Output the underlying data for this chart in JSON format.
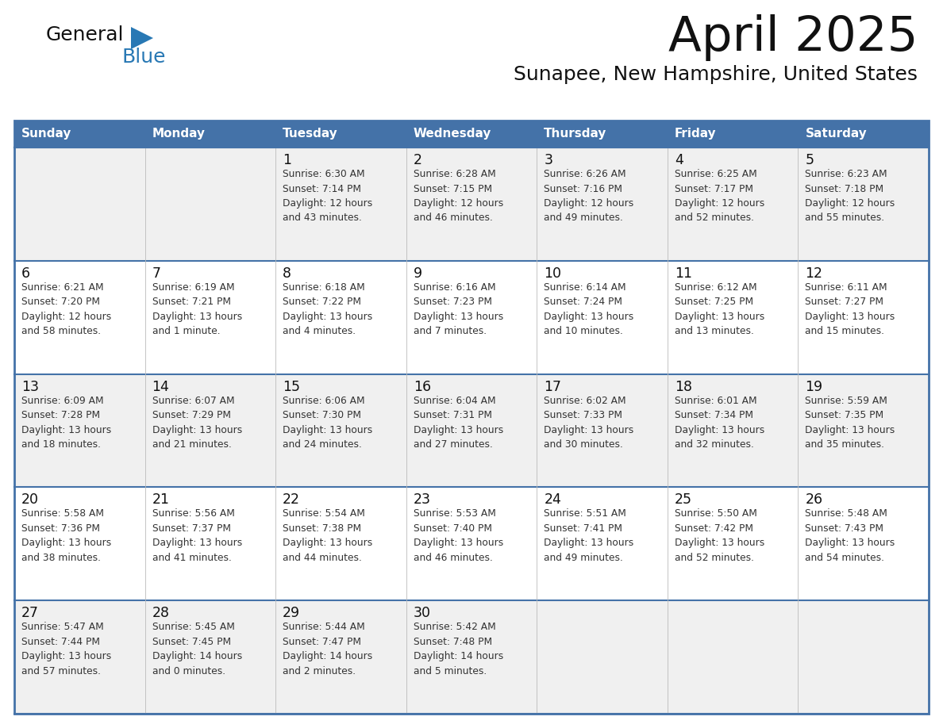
{
  "title": "April 2025",
  "subtitle": "Sunapee, New Hampshire, United States",
  "days_of_week": [
    "Sunday",
    "Monday",
    "Tuesday",
    "Wednesday",
    "Thursday",
    "Friday",
    "Saturday"
  ],
  "header_bg": "#4472a8",
  "header_text": "#ffffff",
  "row_bg_odd": "#f0f0f0",
  "row_bg_even": "#ffffff",
  "cell_text_color": "#333333",
  "day_num_color": "#111111",
  "border_color": "#4472a8",
  "inner_line_color": "#4472a8",
  "title_color": "#111111",
  "subtitle_color": "#111111",
  "logo_black": "#111111",
  "logo_blue": "#2878b4",
  "weeks": [
    [
      {
        "day": null,
        "info": null
      },
      {
        "day": null,
        "info": null
      },
      {
        "day": 1,
        "info": "Sunrise: 6:30 AM\nSunset: 7:14 PM\nDaylight: 12 hours\nand 43 minutes."
      },
      {
        "day": 2,
        "info": "Sunrise: 6:28 AM\nSunset: 7:15 PM\nDaylight: 12 hours\nand 46 minutes."
      },
      {
        "day": 3,
        "info": "Sunrise: 6:26 AM\nSunset: 7:16 PM\nDaylight: 12 hours\nand 49 minutes."
      },
      {
        "day": 4,
        "info": "Sunrise: 6:25 AM\nSunset: 7:17 PM\nDaylight: 12 hours\nand 52 minutes."
      },
      {
        "day": 5,
        "info": "Sunrise: 6:23 AM\nSunset: 7:18 PM\nDaylight: 12 hours\nand 55 minutes."
      }
    ],
    [
      {
        "day": 6,
        "info": "Sunrise: 6:21 AM\nSunset: 7:20 PM\nDaylight: 12 hours\nand 58 minutes."
      },
      {
        "day": 7,
        "info": "Sunrise: 6:19 AM\nSunset: 7:21 PM\nDaylight: 13 hours\nand 1 minute."
      },
      {
        "day": 8,
        "info": "Sunrise: 6:18 AM\nSunset: 7:22 PM\nDaylight: 13 hours\nand 4 minutes."
      },
      {
        "day": 9,
        "info": "Sunrise: 6:16 AM\nSunset: 7:23 PM\nDaylight: 13 hours\nand 7 minutes."
      },
      {
        "day": 10,
        "info": "Sunrise: 6:14 AM\nSunset: 7:24 PM\nDaylight: 13 hours\nand 10 minutes."
      },
      {
        "day": 11,
        "info": "Sunrise: 6:12 AM\nSunset: 7:25 PM\nDaylight: 13 hours\nand 13 minutes."
      },
      {
        "day": 12,
        "info": "Sunrise: 6:11 AM\nSunset: 7:27 PM\nDaylight: 13 hours\nand 15 minutes."
      }
    ],
    [
      {
        "day": 13,
        "info": "Sunrise: 6:09 AM\nSunset: 7:28 PM\nDaylight: 13 hours\nand 18 minutes."
      },
      {
        "day": 14,
        "info": "Sunrise: 6:07 AM\nSunset: 7:29 PM\nDaylight: 13 hours\nand 21 minutes."
      },
      {
        "day": 15,
        "info": "Sunrise: 6:06 AM\nSunset: 7:30 PM\nDaylight: 13 hours\nand 24 minutes."
      },
      {
        "day": 16,
        "info": "Sunrise: 6:04 AM\nSunset: 7:31 PM\nDaylight: 13 hours\nand 27 minutes."
      },
      {
        "day": 17,
        "info": "Sunrise: 6:02 AM\nSunset: 7:33 PM\nDaylight: 13 hours\nand 30 minutes."
      },
      {
        "day": 18,
        "info": "Sunrise: 6:01 AM\nSunset: 7:34 PM\nDaylight: 13 hours\nand 32 minutes."
      },
      {
        "day": 19,
        "info": "Sunrise: 5:59 AM\nSunset: 7:35 PM\nDaylight: 13 hours\nand 35 minutes."
      }
    ],
    [
      {
        "day": 20,
        "info": "Sunrise: 5:58 AM\nSunset: 7:36 PM\nDaylight: 13 hours\nand 38 minutes."
      },
      {
        "day": 21,
        "info": "Sunrise: 5:56 AM\nSunset: 7:37 PM\nDaylight: 13 hours\nand 41 minutes."
      },
      {
        "day": 22,
        "info": "Sunrise: 5:54 AM\nSunset: 7:38 PM\nDaylight: 13 hours\nand 44 minutes."
      },
      {
        "day": 23,
        "info": "Sunrise: 5:53 AM\nSunset: 7:40 PM\nDaylight: 13 hours\nand 46 minutes."
      },
      {
        "day": 24,
        "info": "Sunrise: 5:51 AM\nSunset: 7:41 PM\nDaylight: 13 hours\nand 49 minutes."
      },
      {
        "day": 25,
        "info": "Sunrise: 5:50 AM\nSunset: 7:42 PM\nDaylight: 13 hours\nand 52 minutes."
      },
      {
        "day": 26,
        "info": "Sunrise: 5:48 AM\nSunset: 7:43 PM\nDaylight: 13 hours\nand 54 minutes."
      }
    ],
    [
      {
        "day": 27,
        "info": "Sunrise: 5:47 AM\nSunset: 7:44 PM\nDaylight: 13 hours\nand 57 minutes."
      },
      {
        "day": 28,
        "info": "Sunrise: 5:45 AM\nSunset: 7:45 PM\nDaylight: 14 hours\nand 0 minutes."
      },
      {
        "day": 29,
        "info": "Sunrise: 5:44 AM\nSunset: 7:47 PM\nDaylight: 14 hours\nand 2 minutes."
      },
      {
        "day": 30,
        "info": "Sunrise: 5:42 AM\nSunset: 7:48 PM\nDaylight: 14 hours\nand 5 minutes."
      },
      {
        "day": null,
        "info": null
      },
      {
        "day": null,
        "info": null
      },
      {
        "day": null,
        "info": null
      }
    ]
  ]
}
